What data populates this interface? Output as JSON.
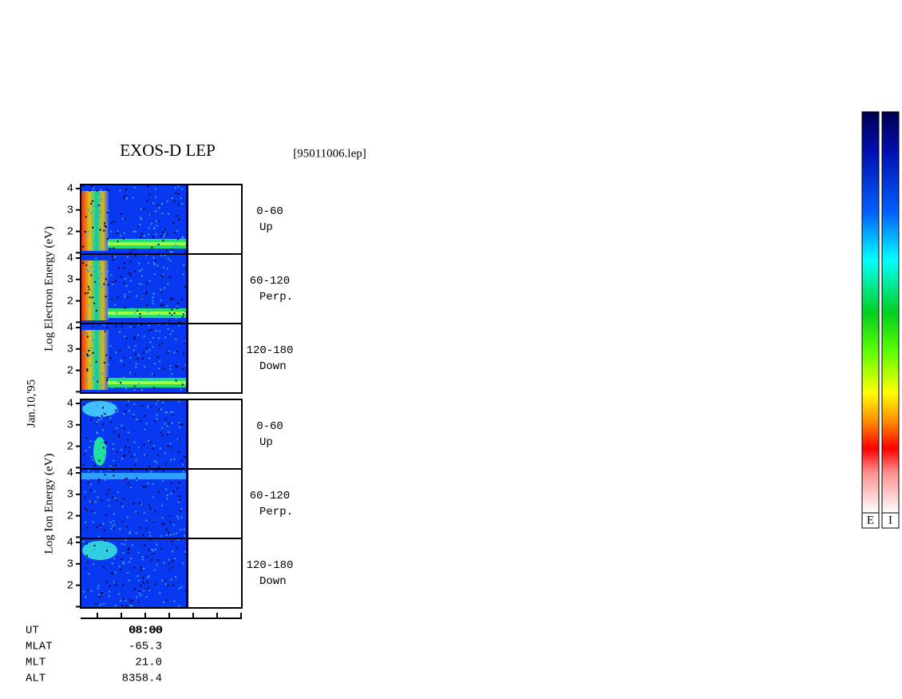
{
  "header": {
    "title": "EXOS-D LEP",
    "file": "[95011006.lep]"
  },
  "date": "Jan.10,'95",
  "groups": [
    {
      "axis_label": "Log  Electron  Energy (eV)",
      "panels": [
        {
          "yticks": [
            2,
            3,
            4
          ],
          "pitch": "0-60",
          "direction": "Up"
        },
        {
          "yticks": [
            2,
            3,
            4
          ],
          "pitch": "60-120",
          "direction": "Perp."
        },
        {
          "yticks": [
            2,
            3,
            4
          ],
          "pitch": "120-180",
          "direction": "Down"
        }
      ]
    },
    {
      "axis_label": "Log  Ion  Energy (eV)",
      "panels": [
        {
          "yticks": [
            2,
            3,
            4
          ],
          "pitch": "0-60",
          "direction": "Up"
        },
        {
          "yticks": [
            2,
            3,
            4
          ],
          "pitch": "60-120",
          "direction": "Perp."
        },
        {
          "yticks": [
            2,
            3,
            4
          ],
          "pitch": "120-180",
          "direction": "Down"
        }
      ]
    }
  ],
  "xaxis": {
    "tick_label": "08:00"
  },
  "table": {
    "rows": [
      [
        "UT",
        "08:00"
      ],
      [
        "MLAT",
        "-65.3"
      ],
      [
        "MLT",
        "21.0"
      ],
      [
        "ALT",
        "8358.4"
      ]
    ]
  },
  "colorbars": [
    "E",
    "I"
  ]
}
